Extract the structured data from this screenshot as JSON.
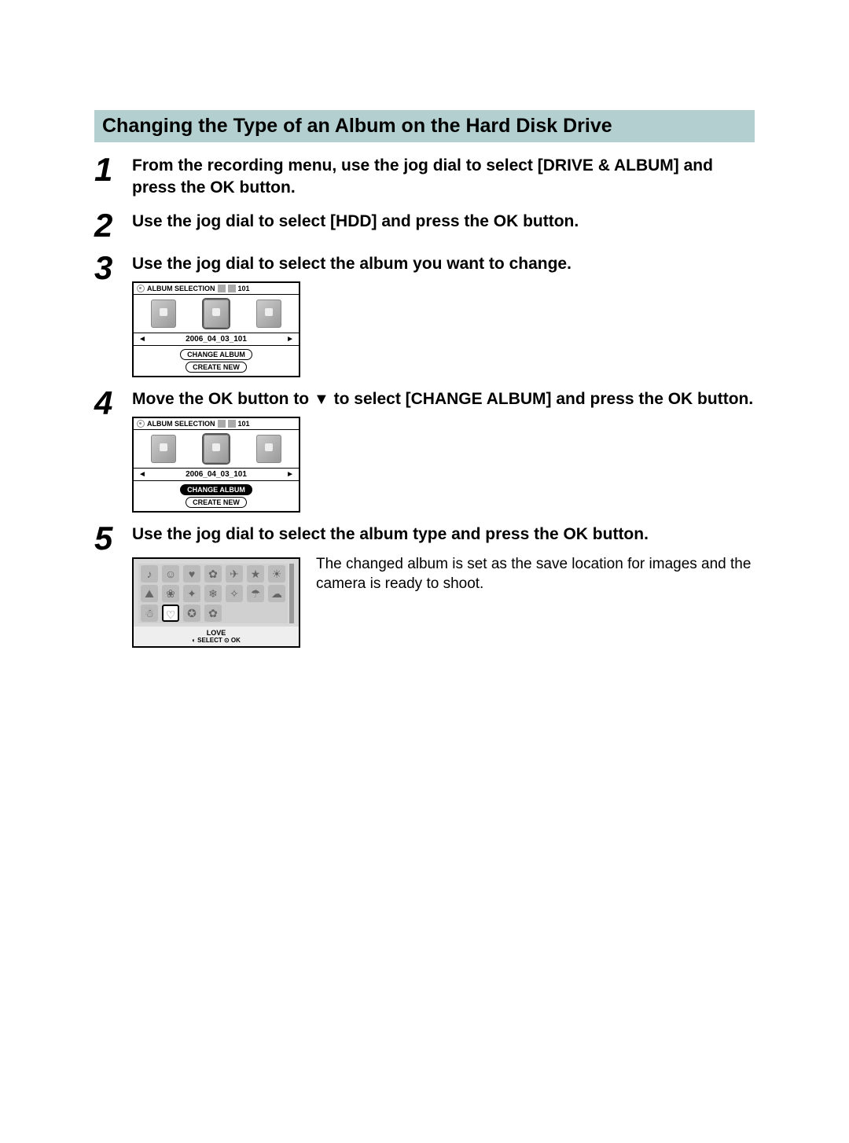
{
  "title": "Changing the Type of an Album on the Hard Disk Drive",
  "steps": {
    "s1": {
      "num": "1",
      "text": "From the recording menu, use the jog dial to select [DRIVE & ALBUM] and press the OK button."
    },
    "s2": {
      "num": "2",
      "text": "Use the jog dial to select [HDD] and press the OK button."
    },
    "s3": {
      "num": "3",
      "text": "Use the jog dial to select the album you want to change."
    },
    "s4": {
      "num": "4",
      "text_pre": "Move the OK button to ",
      "text_post": " to select [CHANGE ALBUM] and press the OK button."
    },
    "s5": {
      "num": "5",
      "text": "Use the jog dial to select the album type and press the OK button.",
      "note": "The changed album is set as the save location for images and the camera is ready to shoot."
    }
  },
  "screen_album": {
    "header_label": "ALBUM SELECTION",
    "header_count": "101",
    "date": "2006_04_03_101",
    "pill_change": "CHANGE ALBUM",
    "pill_create": "CREATE NEW"
  },
  "screen_icons": {
    "label": "LOVE",
    "footer_select": "SELECT",
    "footer_ok": "OK",
    "glyphs": [
      "♪",
      "☺",
      "♥",
      "✿",
      "✈",
      "★",
      "☀",
      "⛰",
      "❀",
      "✦",
      "❄",
      "✧",
      "☂",
      "☁",
      "☃",
      "♡",
      "✪",
      "✿"
    ]
  },
  "colors": {
    "title_bg": "#b3cfd0",
    "text": "#000000",
    "screen_gray": "#d8d8d8"
  }
}
